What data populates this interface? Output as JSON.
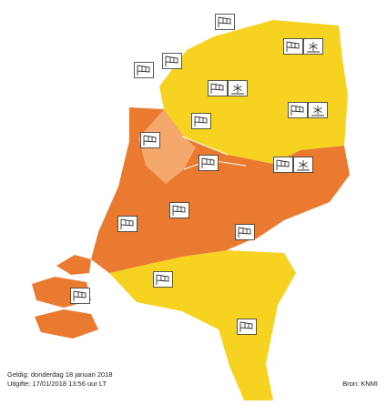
{
  "footer": {
    "valid": "Geldig: donderdag 18 januari 2018",
    "issued": "Uitgifte: 17/01/2018 13:56 uur LT",
    "source": "Bron: KNMI"
  }
}
